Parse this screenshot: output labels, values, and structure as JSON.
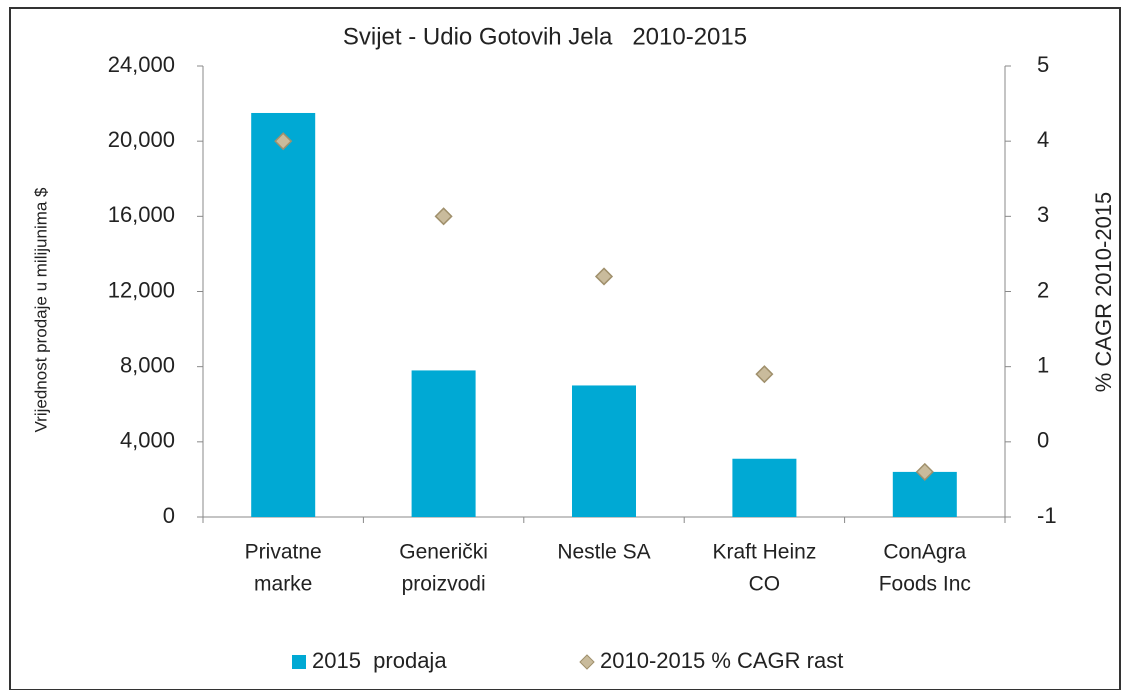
{
  "chart_data": {
    "type": "bar",
    "title": "Svijet - Udio Gotovih Jela   2010-2015",
    "y_label": "Vrijednost prodaje u milijunima $",
    "y2_label": "% CAGR 2010-2015",
    "categories": [
      [
        "Privatne",
        "marke"
      ],
      [
        "Generički",
        "proizvodi"
      ],
      [
        "Nestle SA"
      ],
      [
        "Kraft Heinz",
        "CO"
      ],
      [
        "ConAgra",
        "Foods Inc"
      ]
    ],
    "series": [
      {
        "name": "2015  prodaja",
        "type": "bar",
        "color": "#00a9d4",
        "values": [
          21500,
          7800,
          7000,
          3100,
          2400
        ]
      },
      {
        "name": "2010-2015 % CAGR rast",
        "type": "scatter",
        "axis": "y2",
        "color": "#c9bb9c",
        "values": [
          4.0,
          3.0,
          2.2,
          0.9,
          -0.4
        ]
      }
    ],
    "ylim": [
      0,
      24000
    ],
    "yticks": [
      0,
      {
        "value": 4000,
        "label": "4,000"
      },
      {
        "value": 8000,
        "label": "8,000"
      },
      {
        "value": 12000,
        "label": "12,000"
      },
      {
        "value": 16000,
        "label": "16,000"
      },
      {
        "value": 20000,
        "label": "20,000"
      },
      {
        "value": 24000,
        "label": "24,000"
      }
    ],
    "y2lim": [
      -1,
      5
    ],
    "y2ticks": [
      -1,
      0,
      1,
      2,
      3,
      4,
      5
    ],
    "legend": "bottom"
  }
}
